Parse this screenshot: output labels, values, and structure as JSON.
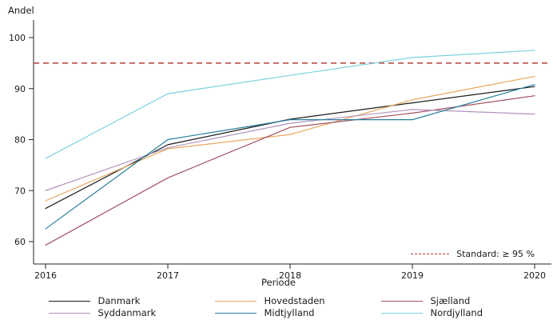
{
  "figure": {
    "y_axis_title": "Andel",
    "x_axis_title": "Periode",
    "background": "#ffffff",
    "axis_color": "#262626",
    "text_color": "#1a1a1a"
  },
  "chart_data": {
    "type": "line",
    "title": "",
    "xlabel": "Periode",
    "ylabel": "Andel",
    "x": [
      "2016",
      "2017",
      "2018",
      "2019",
      "2020"
    ],
    "y_ticks": [
      60,
      70,
      80,
      90,
      100
    ],
    "ylim": [
      55.5,
      103.5
    ],
    "grid": false,
    "legend_position": "bottom",
    "reference_line": {
      "value": 95,
      "label": "Standard: ≥ 95 %",
      "style": "dashed",
      "color": "#b0413e"
    },
    "series": [
      {
        "name": "Danmark",
        "color": "#1a1a1a",
        "values": [
          66.5,
          79.0,
          84.0,
          87.2,
          90.4
        ]
      },
      {
        "name": "Hovedstaden",
        "color": "#e8a85f",
        "values": [
          68.0,
          78.2,
          81.0,
          87.8,
          92.4
        ]
      },
      {
        "name": "Sjælland",
        "color": "#a1505f",
        "values": [
          59.3,
          72.5,
          82.4,
          85.2,
          88.6
        ]
      },
      {
        "name": "Syddanmark",
        "color": "#b195bd",
        "values": [
          70.0,
          78.4,
          83.2,
          85.9,
          85.0
        ]
      },
      {
        "name": "Midtjylland",
        "color": "#2a7f9c",
        "values": [
          62.5,
          80.0,
          83.9,
          83.9,
          90.8
        ]
      },
      {
        "name": "Nordjylland",
        "color": "#7cd1de",
        "values": [
          76.3,
          89.0,
          92.6,
          96.1,
          97.5
        ]
      }
    ]
  }
}
